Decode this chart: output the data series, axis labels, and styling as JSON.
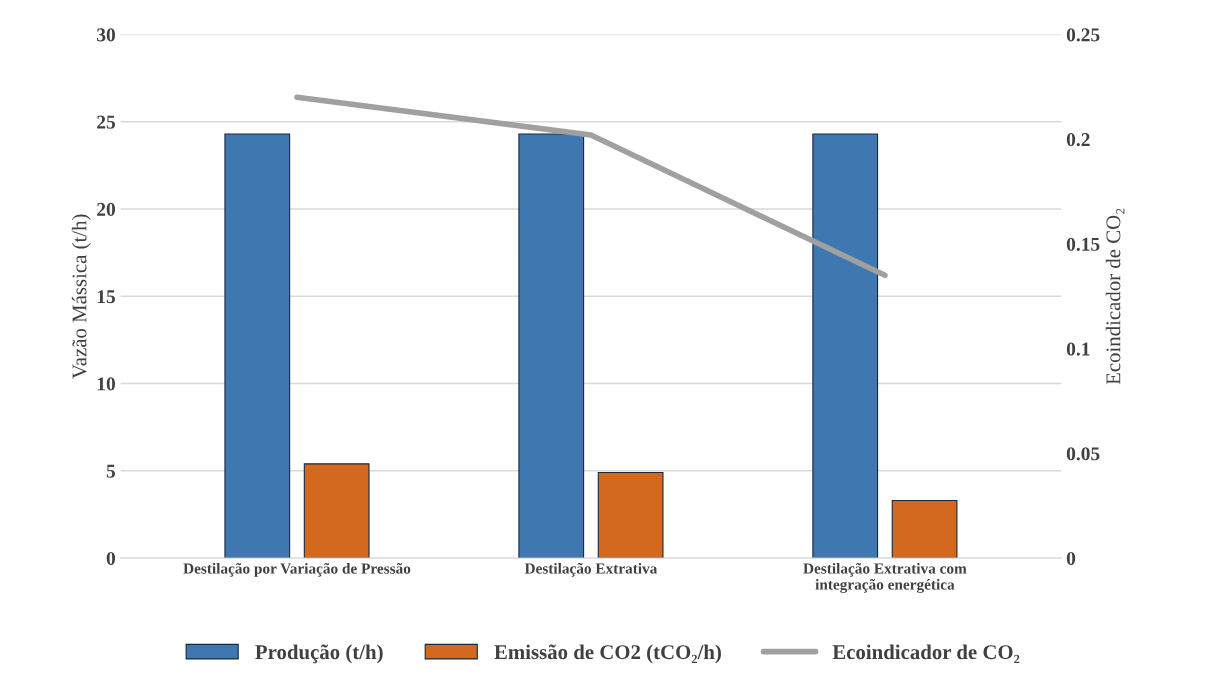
{
  "chart_data": {
    "type": "bar",
    "ylabel": "Vazão Mássica (t/h)",
    "y2label": "Ecoindicador de CO₂",
    "categories": [
      "Destilação por Variação de Pressão",
      "Destilação Extrativa",
      "Destilação Extrativa com\nintegração energética"
    ],
    "series": [
      {
        "name": "Produção (t/h)",
        "color": "#3f78b0",
        "values": [
          24.3,
          24.3,
          24.3
        ]
      },
      {
        "name": "Emissão de CO2 (tCO₂/h)",
        "color": "#d2691e",
        "values": [
          5.4,
          4.9,
          3.3
        ]
      },
      {
        "name": "Ecoindicador de CO₂",
        "type": "line",
        "axis": "y2",
        "color": "#a0a0a0",
        "values": [
          0.22,
          0.202,
          0.135
        ]
      }
    ],
    "ylim": [
      0,
      30
    ],
    "yticks": [
      0,
      5,
      10,
      15,
      20,
      25,
      30
    ],
    "y2lim": [
      0,
      0.25
    ],
    "y2ticks": [
      0,
      0.05,
      0.1,
      0.15,
      0.2,
      0.25
    ],
    "grid": "y",
    "legend": "bottom",
    "marker": "none",
    "line_style": "solid"
  }
}
